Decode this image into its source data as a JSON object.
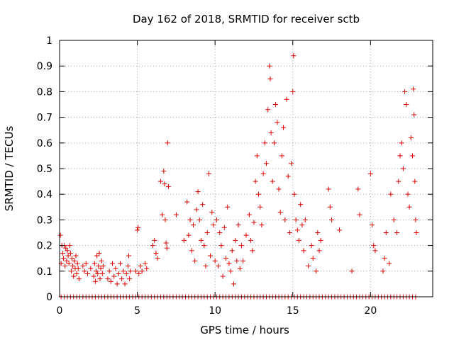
{
  "chart_data": {
    "type": "scatter",
    "title": "Day 162 of 2018, SRMTID for receiver sctb",
    "xlabel": "GPS time / hours",
    "ylabel": "SRMTID / TECUs",
    "xlim": [
      0,
      24
    ],
    "ylim": [
      0,
      1
    ],
    "xticks": [
      0,
      5,
      10,
      15,
      20
    ],
    "xtick_labels": [
      "0",
      "5",
      "10",
      "15",
      "20"
    ],
    "yticks": [
      0,
      0.1,
      0.2,
      0.3,
      0.4,
      0.5,
      0.6,
      0.7,
      0.8,
      0.9,
      1
    ],
    "ytick_labels": [
      "0",
      "0.1",
      "0.2",
      "0.3",
      "0.4",
      "0.5",
      "0.6",
      "0.7",
      "0.8",
      "0.9",
      "1"
    ],
    "grid": true,
    "marker": "+",
    "color": "#dd0000",
    "series": [
      {
        "name": "SRMTID",
        "points": [
          [
            0.05,
            0.24
          ],
          [
            0.1,
            0.13
          ],
          [
            0.15,
            0.2
          ],
          [
            0.2,
            0.17
          ],
          [
            0.25,
            0.15
          ],
          [
            0.3,
            0.2
          ],
          [
            0.35,
            0.12
          ],
          [
            0.4,
            0.19
          ],
          [
            0.45,
            0.14
          ],
          [
            0.5,
            0.18
          ],
          [
            0.55,
            0.16
          ],
          [
            0.6,
            0.13
          ],
          [
            0.65,
            0.2
          ],
          [
            0.7,
            0.17
          ],
          [
            0.75,
            0.1
          ],
          [
            0.8,
            0.15
          ],
          [
            0.85,
            0.12
          ],
          [
            0.9,
            0.08
          ],
          [
            0.95,
            0.14
          ],
          [
            1.0,
            0.11
          ],
          [
            1.05,
            0.16
          ],
          [
            1.1,
            0.09
          ],
          [
            1.15,
            0.13
          ],
          [
            1.2,
            0.11
          ],
          [
            1.25,
            0.07
          ],
          [
            1.5,
            0.12
          ],
          [
            1.6,
            0.1
          ],
          [
            1.7,
            0.13
          ],
          [
            1.8,
            0.09
          ],
          [
            2.0,
            0.11
          ],
          [
            2.2,
            0.08
          ],
          [
            2.25,
            0.13
          ],
          [
            2.3,
            0.06
          ],
          [
            2.35,
            0.1
          ],
          [
            2.4,
            0.16
          ],
          [
            2.45,
            0.09
          ],
          [
            2.5,
            0.12
          ],
          [
            2.55,
            0.17
          ],
          [
            2.6,
            0.07
          ],
          [
            2.65,
            0.11
          ],
          [
            2.7,
            0.14
          ],
          [
            2.75,
            0.09
          ],
          [
            2.8,
            0.12
          ],
          [
            3.1,
            0.07
          ],
          [
            3.2,
            0.1
          ],
          [
            3.3,
            0.06
          ],
          [
            3.4,
            0.13
          ],
          [
            3.5,
            0.08
          ],
          [
            3.6,
            0.11
          ],
          [
            3.7,
            0.05
          ],
          [
            3.8,
            0.09
          ],
          [
            3.9,
            0.13
          ],
          [
            4.0,
            0.07
          ],
          [
            4.1,
            0.1
          ],
          [
            4.2,
            0.05
          ],
          [
            4.3,
            0.09
          ],
          [
            4.4,
            0.12
          ],
          [
            4.45,
            0.16
          ],
          [
            4.5,
            0.07
          ],
          [
            4.55,
            0.1
          ],
          [
            4.9,
            0.1
          ],
          [
            5.0,
            0.26
          ],
          [
            5.05,
            0.27
          ],
          [
            5.1,
            0.09
          ],
          [
            5.2,
            0.12
          ],
          [
            5.3,
            0.1
          ],
          [
            5.5,
            0.13
          ],
          [
            5.6,
            0.11
          ],
          [
            6.0,
            0.2
          ],
          [
            6.1,
            0.22
          ],
          [
            6.2,
            0.17
          ],
          [
            6.3,
            0.15
          ],
          [
            6.5,
            0.45
          ],
          [
            6.6,
            0.32
          ],
          [
            6.7,
            0.49
          ],
          [
            6.75,
            0.44
          ],
          [
            6.8,
            0.3
          ],
          [
            6.85,
            0.21
          ],
          [
            6.9,
            0.19
          ],
          [
            6.95,
            0.6
          ],
          [
            7.0,
            0.43
          ],
          [
            7.5,
            0.32
          ],
          [
            8.0,
            0.22
          ],
          [
            8.2,
            0.37
          ],
          [
            8.3,
            0.24
          ],
          [
            8.4,
            0.3
          ],
          [
            8.5,
            0.18
          ],
          [
            8.6,
            0.28
          ],
          [
            8.7,
            0.14
          ],
          [
            8.8,
            0.34
          ],
          [
            8.9,
            0.41
          ],
          [
            9.0,
            0.3
          ],
          [
            9.1,
            0.22
          ],
          [
            9.2,
            0.36
          ],
          [
            9.3,
            0.2
          ],
          [
            9.4,
            0.12
          ],
          [
            9.5,
            0.25
          ],
          [
            9.6,
            0.48
          ],
          [
            9.7,
            0.16
          ],
          [
            9.8,
            0.33
          ],
          [
            9.9,
            0.28
          ],
          [
            10.0,
            0.14
          ],
          [
            10.1,
            0.3
          ],
          [
            10.2,
            0.12
          ],
          [
            10.3,
            0.25
          ],
          [
            10.4,
            0.2
          ],
          [
            10.5,
            0.08
          ],
          [
            10.6,
            0.27
          ],
          [
            10.7,
            0.15
          ],
          [
            10.8,
            0.35
          ],
          [
            10.9,
            0.13
          ],
          [
            11.0,
            0.1
          ],
          [
            11.1,
            0.18
          ],
          [
            11.2,
            0.05
          ],
          [
            11.3,
            0.22
          ],
          [
            11.4,
            0.14
          ],
          [
            11.5,
            0.28
          ],
          [
            11.6,
            0.11
          ],
          [
            11.7,
            0.2
          ],
          [
            11.8,
            0.14
          ],
          [
            12.0,
            0.24
          ],
          [
            12.2,
            0.32
          ],
          [
            12.3,
            0.22
          ],
          [
            12.4,
            0.18
          ],
          [
            12.5,
            0.29
          ],
          [
            12.6,
            0.45
          ],
          [
            12.7,
            0.55
          ],
          [
            12.8,
            0.4
          ],
          [
            12.9,
            0.35
          ],
          [
            13.0,
            0.28
          ],
          [
            13.1,
            0.48
          ],
          [
            13.2,
            0.6
          ],
          [
            13.3,
            0.52
          ],
          [
            13.4,
            0.73
          ],
          [
            13.5,
            0.9
          ],
          [
            13.55,
            0.85
          ],
          [
            13.6,
            0.64
          ],
          [
            13.7,
            0.45
          ],
          [
            13.8,
            0.6
          ],
          [
            13.9,
            0.75
          ],
          [
            14.0,
            0.68
          ],
          [
            14.1,
            0.42
          ],
          [
            14.2,
            0.33
          ],
          [
            14.3,
            0.55
          ],
          [
            14.4,
            0.66
          ],
          [
            14.5,
            0.3
          ],
          [
            14.6,
            0.77
          ],
          [
            14.7,
            0.47
          ],
          [
            14.8,
            0.25
          ],
          [
            14.9,
            0.52
          ],
          [
            15.0,
            0.8
          ],
          [
            15.05,
            0.94
          ],
          [
            15.1,
            0.4
          ],
          [
            15.2,
            0.3
          ],
          [
            15.3,
            0.26
          ],
          [
            15.4,
            0.22
          ],
          [
            15.5,
            0.36
          ],
          [
            15.6,
            0.28
          ],
          [
            15.7,
            0.18
          ],
          [
            15.8,
            0.3
          ],
          [
            16.0,
            0.12
          ],
          [
            16.2,
            0.2
          ],
          [
            16.3,
            0.15
          ],
          [
            16.5,
            0.1
          ],
          [
            16.6,
            0.25
          ],
          [
            16.7,
            0.18
          ],
          [
            16.8,
            0.22
          ],
          [
            17.3,
            0.42
          ],
          [
            17.4,
            0.35
          ],
          [
            17.5,
            0.3
          ],
          [
            18.0,
            0.26
          ],
          [
            18.8,
            0.1
          ],
          [
            19.2,
            0.42
          ],
          [
            19.3,
            0.32
          ],
          [
            20.0,
            0.48
          ],
          [
            20.1,
            0.28
          ],
          [
            20.2,
            0.2
          ],
          [
            20.3,
            0.18
          ],
          [
            20.8,
            0.1
          ],
          [
            20.9,
            0.15
          ],
          [
            21.0,
            0.25
          ],
          [
            21.2,
            0.13
          ],
          [
            21.3,
            0.4
          ],
          [
            21.5,
            0.3
          ],
          [
            21.7,
            0.25
          ],
          [
            21.8,
            0.45
          ],
          [
            21.9,
            0.55
          ],
          [
            22.0,
            0.6
          ],
          [
            22.1,
            0.5
          ],
          [
            22.2,
            0.8
          ],
          [
            22.3,
            0.75
          ],
          [
            22.4,
            0.4
          ],
          [
            22.5,
            0.35
          ],
          [
            22.6,
            0.62
          ],
          [
            22.7,
            0.55
          ],
          [
            22.75,
            0.81
          ],
          [
            22.8,
            0.71
          ],
          [
            22.85,
            0.45
          ],
          [
            22.9,
            0.3
          ],
          [
            22.95,
            0.25
          ]
        ]
      }
    ],
    "zero_band": {
      "y": 0,
      "x_ranges": [
        [
          0.1,
          22.9
        ]
      ],
      "step": 0.2
    }
  }
}
